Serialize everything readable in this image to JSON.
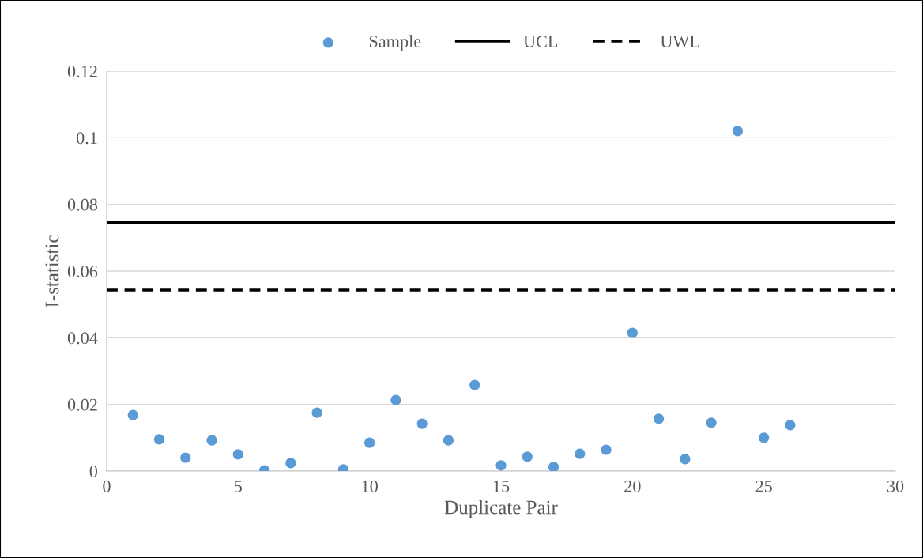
{
  "chart_data": {
    "type": "scatter",
    "xlabel": "Duplicate Pair",
    "ylabel": "I-statistic",
    "series": [
      {
        "name": "Sample",
        "color": "#5b9bd5",
        "marker": "circle",
        "x": [
          1,
          2,
          3,
          4,
          5,
          6,
          7,
          8,
          9,
          10,
          11,
          12,
          13,
          14,
          15,
          16,
          17,
          18,
          19,
          20,
          21,
          22,
          23,
          24,
          25,
          26
        ],
        "values": [
          0.0168,
          0.0095,
          0.004,
          0.0092,
          0.005,
          0.0002,
          0.0024,
          0.0175,
          0.0005,
          0.0085,
          0.0213,
          0.0142,
          0.0092,
          0.0258,
          0.0017,
          0.0043,
          0.0012,
          0.0052,
          0.0064,
          0.0415,
          0.0157,
          0.0036,
          0.0145,
          0.102,
          0.01,
          0.0138
        ]
      },
      {
        "name": "UCL",
        "type": "line",
        "color": "#000000",
        "line_style": "solid",
        "marker": "none",
        "x": [
          0,
          30
        ],
        "values": [
          0.0745,
          0.0745
        ]
      },
      {
        "name": "UWL",
        "type": "line",
        "color": "#000000",
        "line_style": "dashed",
        "marker": "none",
        "x": [
          0,
          30
        ],
        "values": [
          0.0543,
          0.0543
        ]
      }
    ],
    "xlim": [
      0,
      30
    ],
    "xticks": [
      0,
      5,
      10,
      15,
      20,
      25,
      30
    ],
    "ylim": [
      0,
      0.12
    ],
    "yticks": [
      {
        "value": 0,
        "label": "0"
      },
      {
        "value": 0.02,
        "label": "0.02"
      },
      {
        "value": 0.04,
        "label": "0.04"
      },
      {
        "value": 0.06,
        "label": "0.06"
      },
      {
        "value": 0.08,
        "label": "0.08"
      },
      {
        "value": 0.1,
        "label": "0.1"
      },
      {
        "value": 0.12,
        "label": "0.12"
      }
    ],
    "grid": "y",
    "legend": "top"
  }
}
